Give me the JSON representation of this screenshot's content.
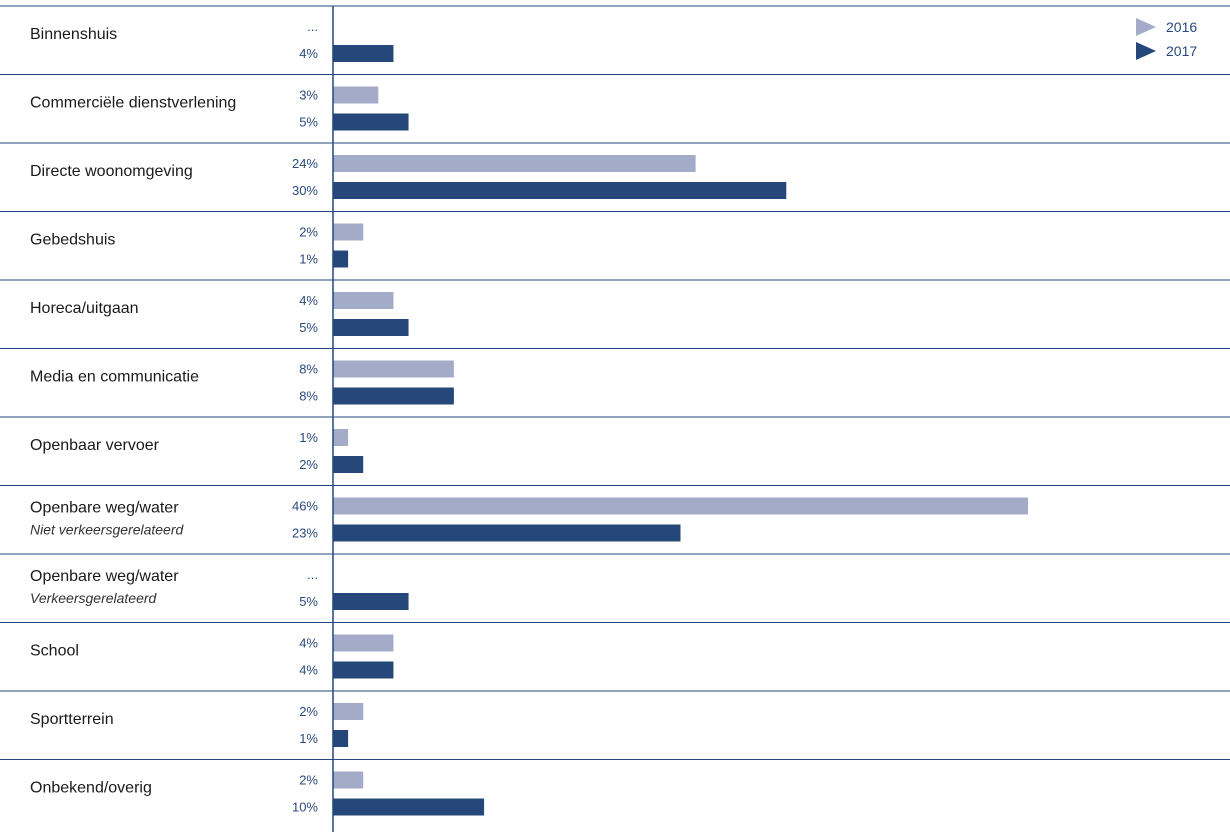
{
  "chart_data": {
    "type": "bar",
    "orientation": "horizontal",
    "title": "",
    "xlabel": "",
    "ylabel": "",
    "xlim": [
      0,
      55
    ],
    "grid": false,
    "legend_position": "top-right",
    "missing_label": "...",
    "value_suffix": "%",
    "categories": [
      {
        "label": "Binnenshuis",
        "sublabel": ""
      },
      {
        "label": "Commerciële dienstverlening",
        "sublabel": ""
      },
      {
        "label": "Directe woonomgeving",
        "sublabel": ""
      },
      {
        "label": "Gebedshuis",
        "sublabel": ""
      },
      {
        "label": "Horeca/uitgaan",
        "sublabel": ""
      },
      {
        "label": "Media en communicatie",
        "sublabel": ""
      },
      {
        "label": "Openbaar vervoer",
        "sublabel": ""
      },
      {
        "label": "Openbare weg/water",
        "sublabel": "Niet verkeersgerelateerd"
      },
      {
        "label": "Openbare weg/water",
        "sublabel": "Verkeersgerelateerd"
      },
      {
        "label": "School",
        "sublabel": ""
      },
      {
        "label": "Sportterrein",
        "sublabel": ""
      },
      {
        "label": "Onbekend/overig",
        "sublabel": ""
      }
    ],
    "series": [
      {
        "name": "2016",
        "color": "#a3abc8",
        "values": [
          null,
          3,
          24,
          2,
          4,
          8,
          1,
          46,
          null,
          4,
          2,
          2
        ]
      },
      {
        "name": "2017",
        "color": "#25477a",
        "values": [
          4,
          5,
          30,
          1,
          5,
          8,
          2,
          23,
          5,
          4,
          1,
          10
        ]
      }
    ]
  },
  "colors": {
    "divider": "#25477a",
    "axis": "#25477a",
    "value_text": "#2a4a7c"
  }
}
